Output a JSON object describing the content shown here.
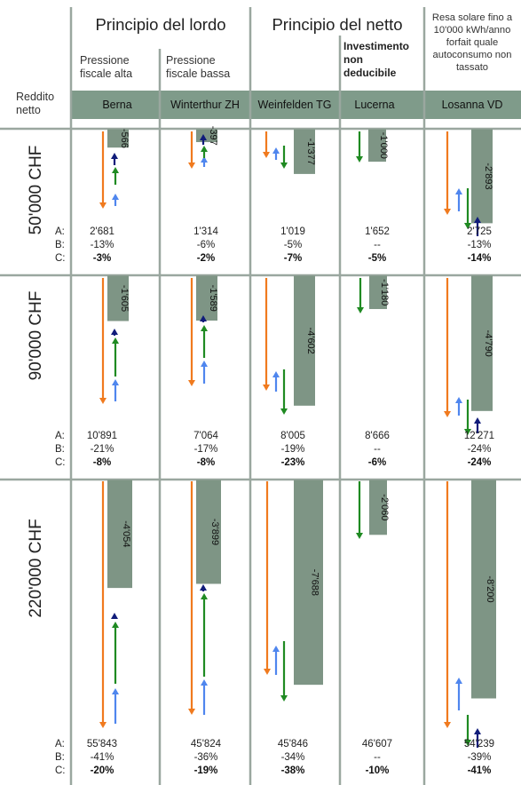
{
  "header": {
    "gross_title": "Principio del lordo",
    "net_title": "Principio del netto",
    "solar_note": [
      "Resa solare fino a",
      "10'000 kWh/anno",
      "forfait quale",
      "autoconsumo non",
      "tassato"
    ],
    "high_tax": [
      "Pressione",
      "fiscale alta"
    ],
    "low_tax": [
      "Pressione",
      "fiscale bassa"
    ],
    "non_deductible": [
      "Investimento",
      "non",
      "deducibile"
    ],
    "row_label": [
      "Reddito",
      "netto"
    ]
  },
  "row_markers": [
    "A:",
    "B:",
    "C:"
  ],
  "chart_data": {
    "type": "bar",
    "categories": [
      "Berna",
      "Winterthur ZH",
      "Weinfelden TG",
      "Lucerna",
      "Losanna VD"
    ],
    "income_rows": [
      {
        "label": "50'000 CHF",
        "bars": [
          "-566",
          "-397",
          "-1'377",
          "-1'000",
          "-2'893"
        ],
        "bar_values": [
          -566,
          -397,
          -1377,
          -1000,
          -2893
        ],
        "A": [
          "2'681",
          "1'314",
          "1'019",
          "1'652",
          "2'725"
        ],
        "B": [
          "-13%",
          "-6%",
          "-5%",
          "--",
          "-13%"
        ],
        "C": [
          "-3%",
          "-2%",
          "-7%",
          "-5%",
          "-14%"
        ]
      },
      {
        "label": "90'000 CHF",
        "bars": [
          "-1'605",
          "-1'589",
          "-4'602",
          "-1'180",
          "-4'790"
        ],
        "bar_values": [
          -1605,
          -1589,
          -4602,
          -1180,
          -4790
        ],
        "A": [
          "10'891",
          "7'064",
          "8'005",
          "8'666",
          "12'271"
        ],
        "B": [
          "-21%",
          "-17%",
          "-19%",
          "--",
          "-24%"
        ],
        "C": [
          "-8%",
          "-8%",
          "-23%",
          "-6%",
          "-24%"
        ]
      },
      {
        "label": "220'000 CHF",
        "bars": [
          "-4'054",
          "-3'899",
          "-7'688",
          "-2'060",
          "-8'200"
        ],
        "bar_values": [
          -4054,
          -3899,
          -7688,
          -2060,
          -8200
        ],
        "A": [
          "55'843",
          "45'824",
          "45'846",
          "46'607",
          "54'239"
        ],
        "B": [
          "-41%",
          "-36%",
          "-34%",
          "--",
          "-39%"
        ],
        "C": [
          "-20%",
          "-19%",
          "-38%",
          "-10%",
          "-41%"
        ]
      }
    ]
  },
  "colors": {
    "header_band": "#7f9b8a",
    "bar": "#7e9585",
    "orange": "#f07a1e",
    "green": "#1f8a22",
    "blue": "#4f86ee",
    "navy": "#101c7a",
    "grid": "#9aa79f"
  }
}
